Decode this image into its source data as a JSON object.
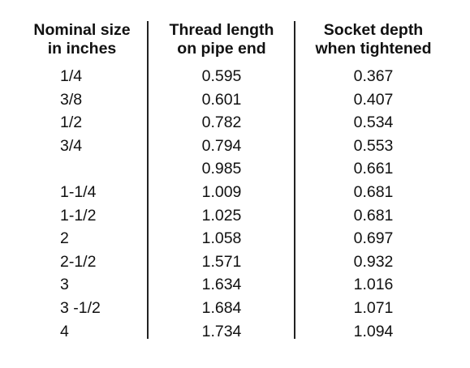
{
  "table": {
    "headers": [
      [
        "Nominal size",
        "in inches"
      ],
      [
        "Thread length",
        "on pipe end"
      ],
      [
        "Socket depth",
        "when tightened"
      ]
    ],
    "rows": [
      [
        "1/4",
        "0.595",
        "0.367"
      ],
      [
        "3/8",
        "0.601",
        "0.407"
      ],
      [
        "1/2",
        "0.782",
        "0.534"
      ],
      [
        "3/4",
        "0.794",
        "0.553"
      ],
      [
        "",
        "0.985",
        "0.661"
      ],
      [
        "1-1/4",
        "1.009",
        "0.681"
      ],
      [
        "1-1/2",
        "1.025",
        "0.681"
      ],
      [
        "2",
        "1.058",
        "0.697"
      ],
      [
        "2-1/2",
        "1.571",
        "0.932"
      ],
      [
        "3",
        "1.634",
        "1.016"
      ],
      [
        "3 -1/2",
        "1.684",
        "1.071"
      ],
      [
        "4",
        "1.734",
        "1.094"
      ]
    ]
  }
}
